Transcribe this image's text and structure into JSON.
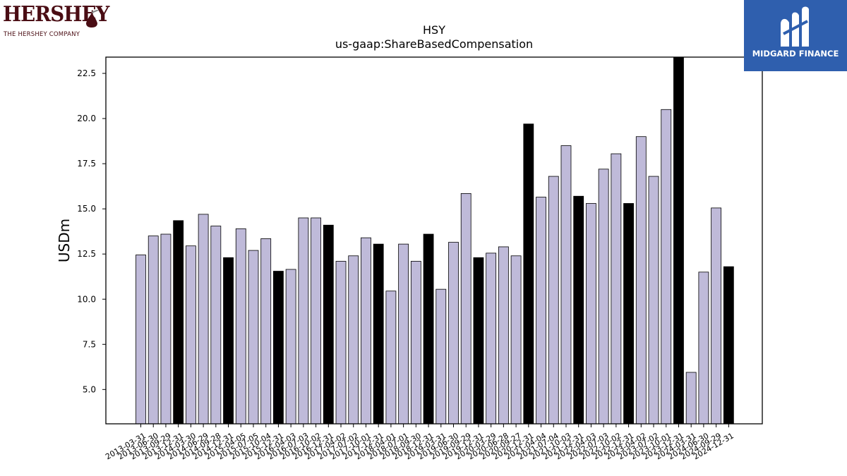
{
  "logos": {
    "left_brand": "HERSHEY",
    "left_tagline": "THE HERSHEY COMPANY",
    "right_brand": "MIDGARD FINANCE"
  },
  "colors": {
    "bar_default": "#bfbad9",
    "bar_highlight": "#000000",
    "bar_edge": "#000000",
    "left_logo": "#4a0d14",
    "right_logo_bg": "#2f5fae"
  },
  "chart_data": {
    "type": "bar",
    "title": "HSY",
    "subtitle": "us-gaap:ShareBasedCompensation",
    "xlabel": "",
    "ylabel": "USDm",
    "ylim": [
      3.1,
      23.4
    ],
    "yticks": [
      "5.0",
      "7.5",
      "10.0",
      "12.5",
      "15.0",
      "17.5",
      "20.0",
      "22.5"
    ],
    "grid": false,
    "categories": [
      "2013-03-31",
      "2013-06-30",
      "2013-09-29",
      "2013-12-31",
      "2014-03-30",
      "2014-06-29",
      "2014-09-28",
      "2014-12-31",
      "2015-04-05",
      "2015-07-05",
      "2015-10-04",
      "2015-12-31",
      "2016-04-03",
      "2016-07-03",
      "2016-10-02",
      "2016-12-31",
      "2017-04-02",
      "2017-07-02",
      "2017-10-01",
      "2017-12-31",
      "2018-04-01",
      "2018-07-01",
      "2018-09-30",
      "2018-12-31",
      "2019-03-31",
      "2019-06-30",
      "2019-09-29",
      "2019-12-31",
      "2020-03-29",
      "2020-06-28",
      "2020-09-27",
      "2020-12-31",
      "2021-04-04",
      "2021-07-04",
      "2021-10-03",
      "2021-12-31",
      "2022-04-03",
      "2022-07-03",
      "2022-10-02",
      "2022-12-31",
      "2023-04-02",
      "2023-07-02",
      "2023-10-01",
      "2023-12-31",
      "2024-03-31",
      "2024-06-30",
      "2024-09-29",
      "2024-12-31"
    ],
    "values": [
      12.45,
      13.5,
      13.6,
      14.35,
      12.95,
      14.7,
      14.05,
      12.3,
      13.9,
      12.7,
      13.35,
      11.55,
      11.65,
      14.5,
      14.5,
      14.1,
      12.1,
      12.4,
      13.4,
      13.05,
      10.45,
      13.05,
      12.1,
      13.6,
      10.55,
      13.15,
      15.85,
      12.3,
      12.55,
      12.9,
      12.4,
      19.7,
      15.65,
      16.8,
      18.5,
      15.7,
      15.3,
      17.2,
      18.05,
      15.3,
      19.0,
      16.8,
      20.5,
      23.6,
      5.95,
      11.5,
      15.05,
      11.8
    ],
    "highlight": [
      false,
      false,
      false,
      true,
      false,
      false,
      false,
      true,
      false,
      false,
      false,
      true,
      false,
      false,
      false,
      true,
      false,
      false,
      false,
      true,
      false,
      false,
      false,
      true,
      false,
      false,
      false,
      true,
      false,
      false,
      false,
      true,
      false,
      false,
      false,
      true,
      false,
      false,
      false,
      true,
      false,
      false,
      false,
      true,
      false,
      false,
      false,
      true
    ]
  }
}
